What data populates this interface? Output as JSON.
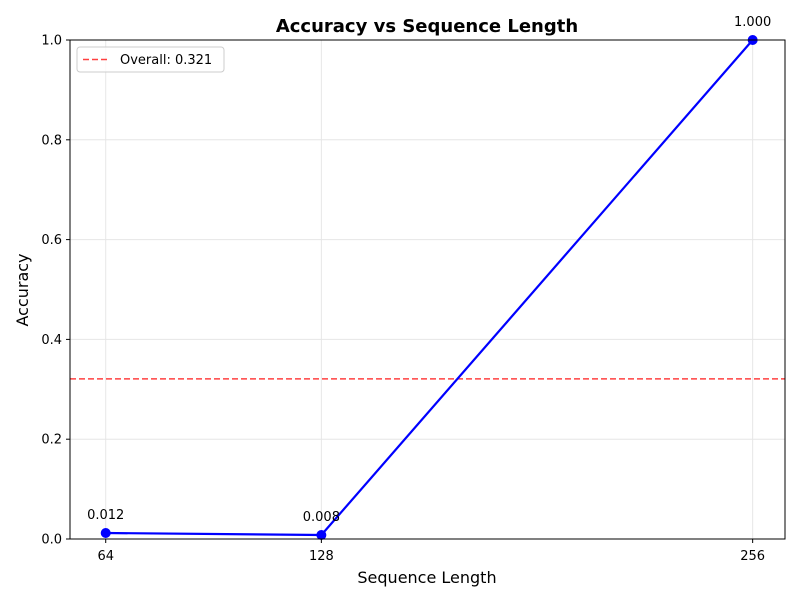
{
  "chart_data": {
    "type": "line",
    "title": "Accuracy vs Sequence Length",
    "xlabel": "Sequence Length",
    "ylabel": "Accuracy",
    "x": [
      64,
      128,
      256
    ],
    "series": [
      {
        "values": [
          0.012,
          0.008,
          1.0
        ],
        "color": "#0000ff",
        "data_labels": [
          "0.012",
          "0.008",
          "1.000"
        ]
      }
    ],
    "x_ticks": [
      64,
      128,
      256
    ],
    "x_tick_labels": [
      "64",
      "128",
      "256"
    ],
    "y_ticks": [
      0.0,
      0.2,
      0.4,
      0.6,
      0.8,
      1.0
    ],
    "y_tick_labels": [
      "0.0",
      "0.2",
      "0.4",
      "0.6",
      "0.8",
      "1.0"
    ],
    "xlim": [
      53.4,
      265.6
    ],
    "ylim": [
      0,
      1.0
    ],
    "grid": true,
    "reference_line": {
      "axis": "y",
      "value": 0.321,
      "label": "Overall: 0.321",
      "color": "#ff0000",
      "style": "dashed"
    },
    "legend": {
      "placement": "top-left",
      "entries": [
        "Overall: 0.321"
      ]
    }
  }
}
